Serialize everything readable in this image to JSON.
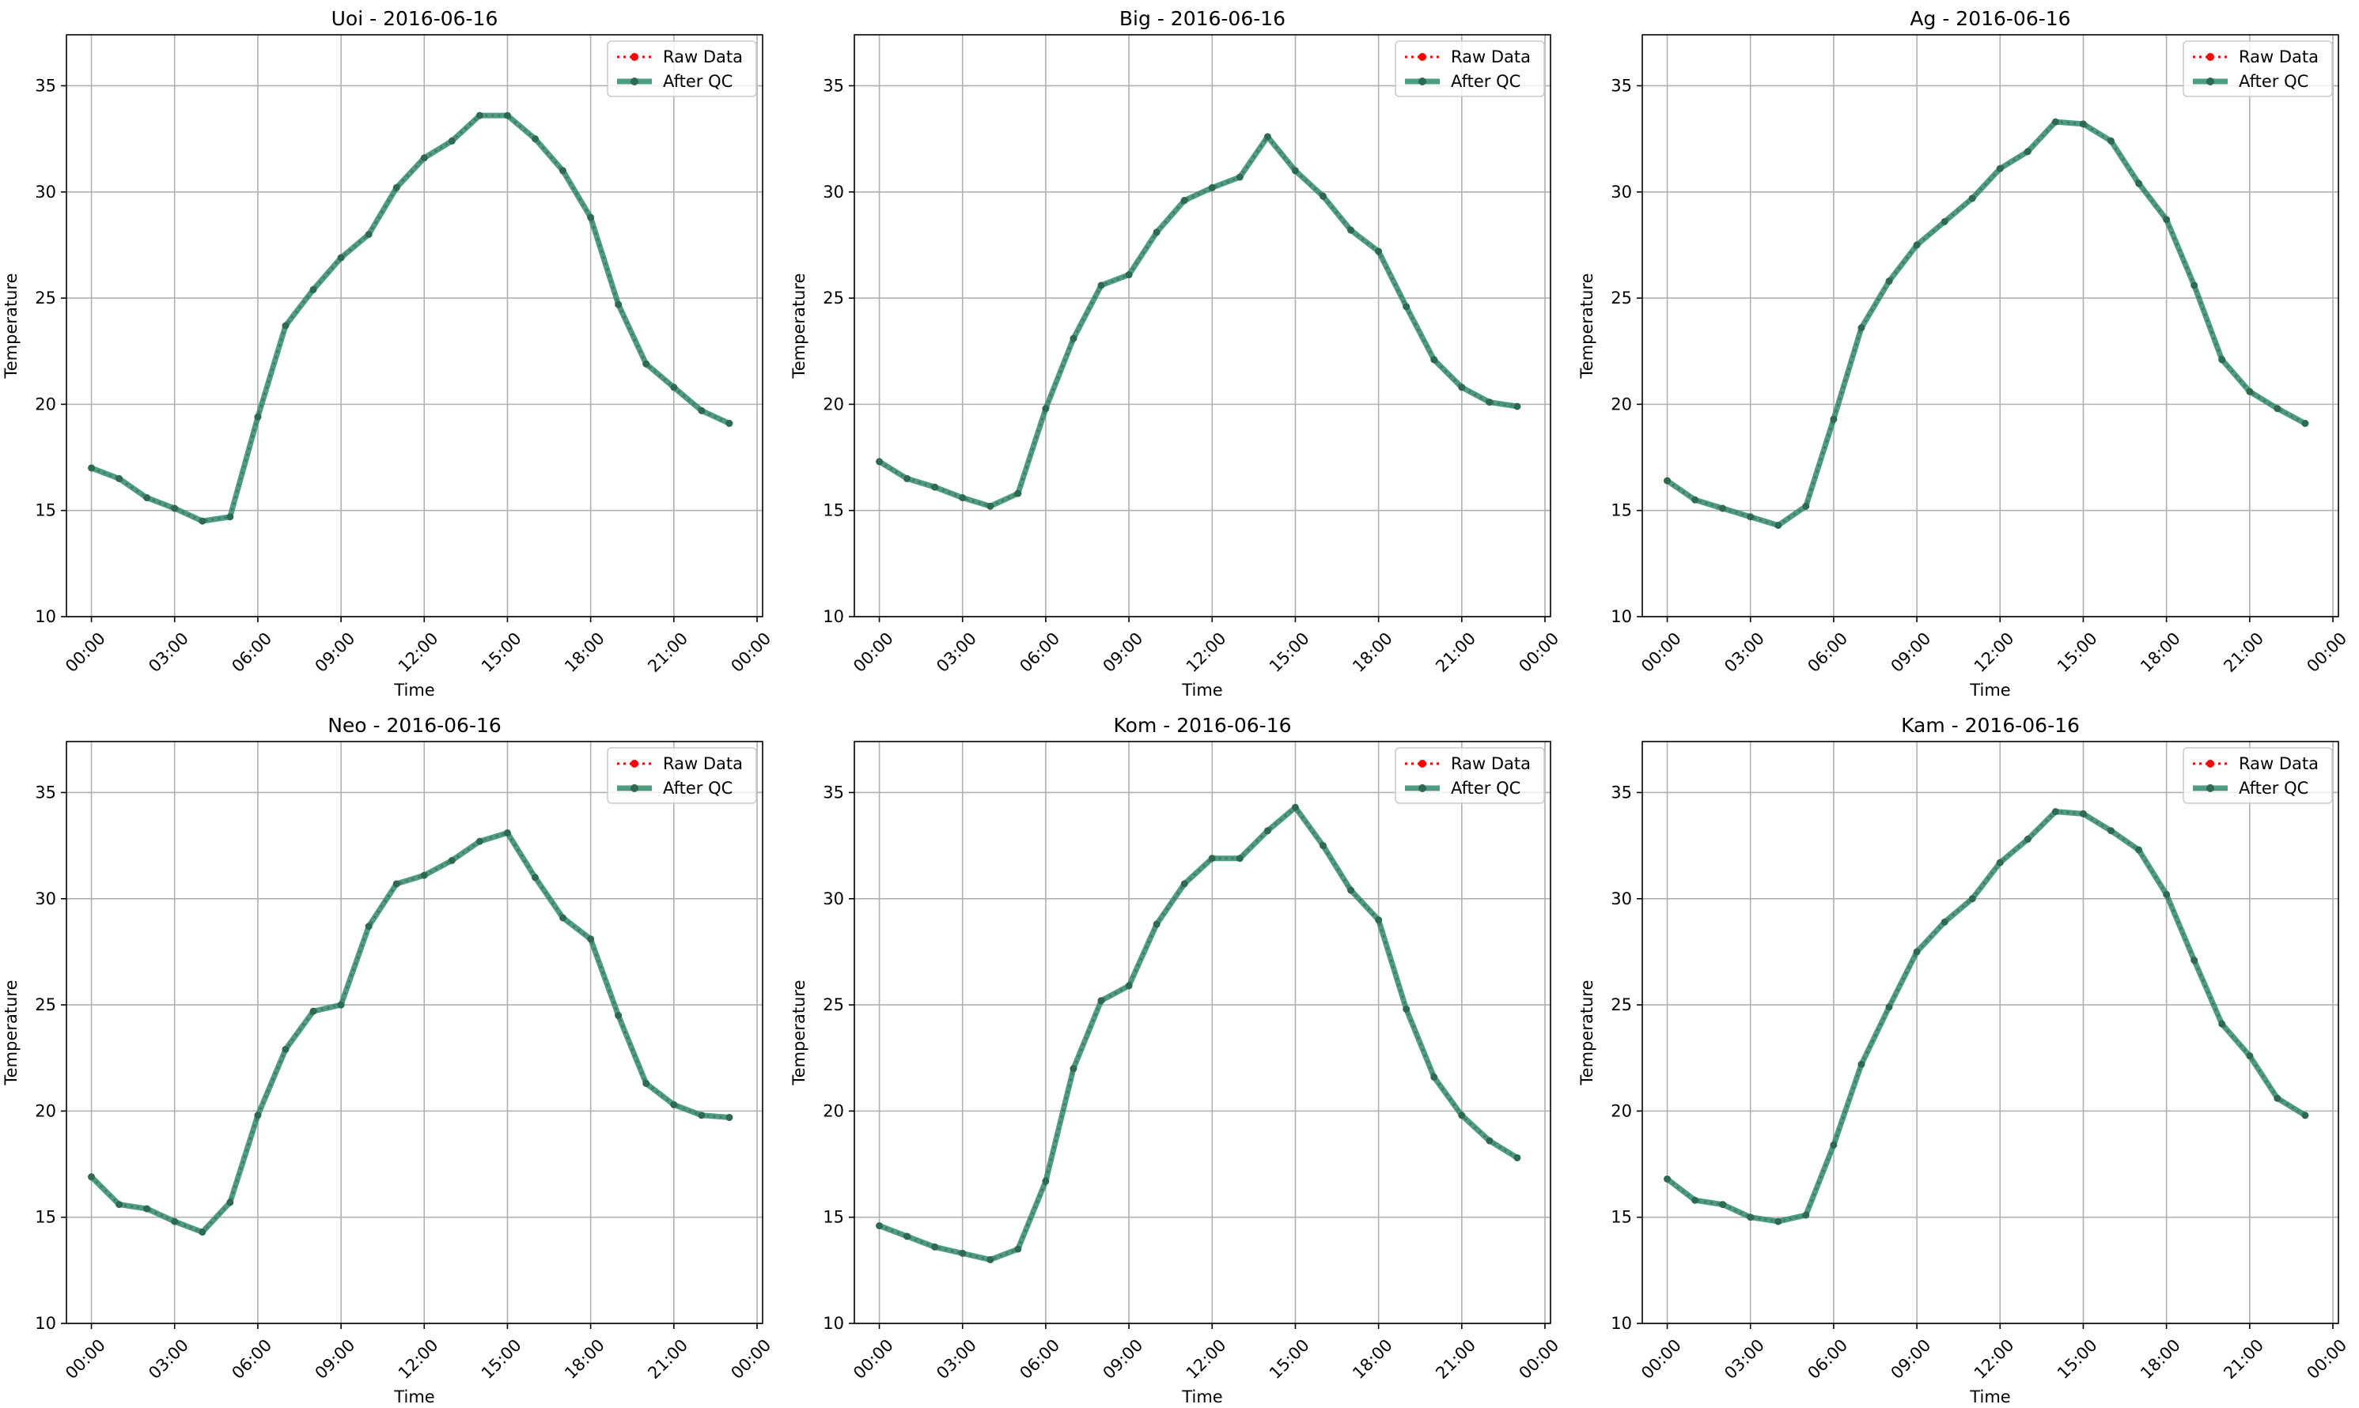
{
  "figure": {
    "background": "#ffffff"
  },
  "colors": {
    "raw": "#ff0000",
    "qc": "#2e8b6e",
    "qc_marker": "#2d6a4f",
    "grid": "#b0b0b0"
  },
  "chart_data": [
    {
      "type": "line",
      "title": "Uoi - 2016-06-16",
      "xlabel": "Time",
      "ylabel": "Temperature",
      "ylim": [
        10,
        37.4
      ],
      "yticks": [
        10,
        15,
        20,
        25,
        30,
        35
      ],
      "xlim": [
        -0.9,
        24.2
      ],
      "xticks": [
        "00:00",
        "03:00",
        "06:00",
        "09:00",
        "12:00",
        "15:00",
        "18:00",
        "21:00",
        "00:00"
      ],
      "grid": true,
      "legend": "top-right",
      "x": [
        "00:00",
        "01:00",
        "02:00",
        "03:00",
        "04:00",
        "05:00",
        "06:00",
        "07:00",
        "08:00",
        "09:00",
        "10:00",
        "11:00",
        "12:00",
        "13:00",
        "14:00",
        "15:00",
        "16:00",
        "17:00",
        "18:00",
        "19:00",
        "20:00",
        "21:00",
        "22:00",
        "23:00"
      ],
      "series": [
        {
          "name": "Raw Data",
          "values": [
            17.0,
            16.5,
            15.6,
            15.1,
            14.5,
            14.7,
            19.4,
            23.7,
            25.4,
            26.9,
            28.0,
            30.2,
            31.6,
            32.4,
            33.6,
            33.6,
            32.5,
            31.0,
            28.8,
            24.7,
            21.9,
            20.8,
            19.7,
            19.1
          ]
        },
        {
          "name": "After QC",
          "values": [
            17.0,
            16.5,
            15.6,
            15.1,
            14.5,
            14.7,
            19.4,
            23.7,
            25.4,
            26.9,
            28.0,
            30.2,
            31.6,
            32.4,
            33.6,
            33.6,
            32.5,
            31.0,
            28.8,
            24.7,
            21.9,
            20.8,
            19.7,
            19.1
          ]
        }
      ]
    },
    {
      "type": "line",
      "title": "Big - 2016-06-16",
      "xlabel": "Time",
      "ylabel": "Temperature",
      "ylim": [
        10,
        37.4
      ],
      "yticks": [
        10,
        15,
        20,
        25,
        30,
        35
      ],
      "xlim": [
        -0.9,
        24.2
      ],
      "xticks": [
        "00:00",
        "03:00",
        "06:00",
        "09:00",
        "12:00",
        "15:00",
        "18:00",
        "21:00",
        "00:00"
      ],
      "grid": true,
      "legend": "top-right",
      "x": [
        "00:00",
        "01:00",
        "02:00",
        "03:00",
        "04:00",
        "05:00",
        "06:00",
        "07:00",
        "08:00",
        "09:00",
        "10:00",
        "11:00",
        "12:00",
        "13:00",
        "14:00",
        "15:00",
        "16:00",
        "17:00",
        "18:00",
        "19:00",
        "20:00",
        "21:00",
        "22:00",
        "23:00"
      ],
      "series": [
        {
          "name": "Raw Data",
          "values": [
            17.3,
            16.5,
            16.1,
            15.6,
            15.2,
            15.8,
            19.8,
            23.1,
            25.6,
            26.1,
            28.1,
            29.6,
            30.2,
            30.7,
            32.6,
            31.0,
            29.8,
            28.2,
            27.2,
            24.6,
            22.1,
            20.8,
            20.1,
            19.9
          ]
        },
        {
          "name": "After QC",
          "values": [
            17.3,
            16.5,
            16.1,
            15.6,
            15.2,
            15.8,
            19.8,
            23.1,
            25.6,
            26.1,
            28.1,
            29.6,
            30.2,
            30.7,
            32.6,
            31.0,
            29.8,
            28.2,
            27.2,
            24.6,
            22.1,
            20.8,
            20.1,
            19.9
          ]
        }
      ]
    },
    {
      "type": "line",
      "title": "Ag - 2016-06-16",
      "xlabel": "Time",
      "ylabel": "Temperature",
      "ylim": [
        10,
        37.4
      ],
      "yticks": [
        10,
        15,
        20,
        25,
        30,
        35
      ],
      "xlim": [
        -0.9,
        24.2
      ],
      "xticks": [
        "00:00",
        "03:00",
        "06:00",
        "09:00",
        "12:00",
        "15:00",
        "18:00",
        "21:00",
        "00:00"
      ],
      "grid": true,
      "legend": "top-right",
      "x": [
        "00:00",
        "01:00",
        "02:00",
        "03:00",
        "04:00",
        "05:00",
        "06:00",
        "07:00",
        "08:00",
        "09:00",
        "10:00",
        "11:00",
        "12:00",
        "13:00",
        "14:00",
        "15:00",
        "16:00",
        "17:00",
        "18:00",
        "19:00",
        "20:00",
        "21:00",
        "22:00",
        "23:00"
      ],
      "series": [
        {
          "name": "Raw Data",
          "values": [
            16.4,
            15.5,
            15.1,
            14.7,
            14.3,
            15.2,
            19.3,
            23.6,
            25.8,
            27.5,
            28.6,
            29.7,
            31.1,
            31.9,
            33.3,
            33.2,
            32.4,
            30.4,
            28.7,
            25.6,
            22.1,
            20.6,
            19.8,
            19.1
          ]
        },
        {
          "name": "After QC",
          "values": [
            16.4,
            15.5,
            15.1,
            14.7,
            14.3,
            15.2,
            19.3,
            23.6,
            25.8,
            27.5,
            28.6,
            29.7,
            31.1,
            31.9,
            33.3,
            33.2,
            32.4,
            30.4,
            28.7,
            25.6,
            22.1,
            20.6,
            19.8,
            19.1
          ]
        }
      ]
    },
    {
      "type": "line",
      "title": "Neo - 2016-06-16",
      "xlabel": "Time",
      "ylabel": "Temperature",
      "ylim": [
        10,
        37.4
      ],
      "yticks": [
        10,
        15,
        20,
        25,
        30,
        35
      ],
      "xlim": [
        -0.9,
        24.2
      ],
      "xticks": [
        "00:00",
        "03:00",
        "06:00",
        "09:00",
        "12:00",
        "15:00",
        "18:00",
        "21:00",
        "00:00"
      ],
      "grid": true,
      "legend": "top-right",
      "x": [
        "00:00",
        "01:00",
        "02:00",
        "03:00",
        "04:00",
        "05:00",
        "06:00",
        "07:00",
        "08:00",
        "09:00",
        "10:00",
        "11:00",
        "12:00",
        "13:00",
        "14:00",
        "15:00",
        "16:00",
        "17:00",
        "18:00",
        "19:00",
        "20:00",
        "21:00",
        "22:00",
        "23:00"
      ],
      "series": [
        {
          "name": "Raw Data",
          "values": [
            16.9,
            15.6,
            15.4,
            14.8,
            14.3,
            15.7,
            19.8,
            22.9,
            24.7,
            25.0,
            28.7,
            30.7,
            31.1,
            31.8,
            32.7,
            33.1,
            31.0,
            29.1,
            28.1,
            24.5,
            21.3,
            20.3,
            19.8,
            19.7
          ]
        },
        {
          "name": "After QC",
          "values": [
            16.9,
            15.6,
            15.4,
            14.8,
            14.3,
            15.7,
            19.8,
            22.9,
            24.7,
            25.0,
            28.7,
            30.7,
            31.1,
            31.8,
            32.7,
            33.1,
            31.0,
            29.1,
            28.1,
            24.5,
            21.3,
            20.3,
            19.8,
            19.7
          ]
        }
      ]
    },
    {
      "type": "line",
      "title": "Kom - 2016-06-16",
      "xlabel": "Time",
      "ylabel": "Temperature",
      "ylim": [
        10,
        37.4
      ],
      "yticks": [
        10,
        15,
        20,
        25,
        30,
        35
      ],
      "xlim": [
        -0.9,
        24.2
      ],
      "xticks": [
        "00:00",
        "03:00",
        "06:00",
        "09:00",
        "12:00",
        "15:00",
        "18:00",
        "21:00",
        "00:00"
      ],
      "grid": true,
      "legend": "top-right",
      "x": [
        "00:00",
        "01:00",
        "02:00",
        "03:00",
        "04:00",
        "05:00",
        "06:00",
        "07:00",
        "08:00",
        "09:00",
        "10:00",
        "11:00",
        "12:00",
        "13:00",
        "14:00",
        "15:00",
        "16:00",
        "17:00",
        "18:00",
        "19:00",
        "20:00",
        "21:00",
        "22:00",
        "23:00"
      ],
      "series": [
        {
          "name": "Raw Data",
          "values": [
            14.6,
            14.1,
            13.6,
            13.3,
            13.0,
            13.5,
            16.7,
            22.0,
            25.2,
            25.9,
            28.8,
            30.7,
            31.9,
            31.9,
            33.2,
            34.3,
            32.5,
            30.4,
            29.0,
            24.8,
            21.6,
            19.8,
            18.6,
            17.8
          ]
        },
        {
          "name": "After QC",
          "values": [
            14.6,
            14.1,
            13.6,
            13.3,
            13.0,
            13.5,
            16.7,
            22.0,
            25.2,
            25.9,
            28.8,
            30.7,
            31.9,
            31.9,
            33.2,
            34.3,
            32.5,
            30.4,
            29.0,
            24.8,
            21.6,
            19.8,
            18.6,
            17.8
          ]
        }
      ]
    },
    {
      "type": "line",
      "title": "Kam - 2016-06-16",
      "xlabel": "Time",
      "ylabel": "Temperature",
      "ylim": [
        10,
        37.4
      ],
      "yticks": [
        10,
        15,
        20,
        25,
        30,
        35
      ],
      "xlim": [
        -0.9,
        24.2
      ],
      "xticks": [
        "00:00",
        "03:00",
        "06:00",
        "09:00",
        "12:00",
        "15:00",
        "18:00",
        "21:00",
        "00:00"
      ],
      "grid": true,
      "legend": "top-right",
      "x": [
        "00:00",
        "01:00",
        "02:00",
        "03:00",
        "04:00",
        "05:00",
        "06:00",
        "07:00",
        "08:00",
        "09:00",
        "10:00",
        "11:00",
        "12:00",
        "13:00",
        "14:00",
        "15:00",
        "16:00",
        "17:00",
        "18:00",
        "19:00",
        "20:00",
        "21:00",
        "22:00",
        "23:00"
      ],
      "series": [
        {
          "name": "Raw Data",
          "values": [
            16.8,
            15.8,
            15.6,
            15.0,
            14.8,
            15.1,
            18.4,
            22.2,
            24.9,
            27.5,
            28.9,
            30.0,
            31.7,
            32.8,
            34.1,
            34.0,
            33.2,
            32.3,
            30.2,
            27.1,
            24.1,
            22.6,
            20.6,
            19.8
          ]
        },
        {
          "name": "After QC",
          "values": [
            16.8,
            15.8,
            15.6,
            15.0,
            14.8,
            15.1,
            18.4,
            22.2,
            24.9,
            27.5,
            28.9,
            30.0,
            31.7,
            32.8,
            34.1,
            34.0,
            33.2,
            32.3,
            30.2,
            27.1,
            24.1,
            22.6,
            20.6,
            19.8
          ]
        }
      ]
    }
  ]
}
